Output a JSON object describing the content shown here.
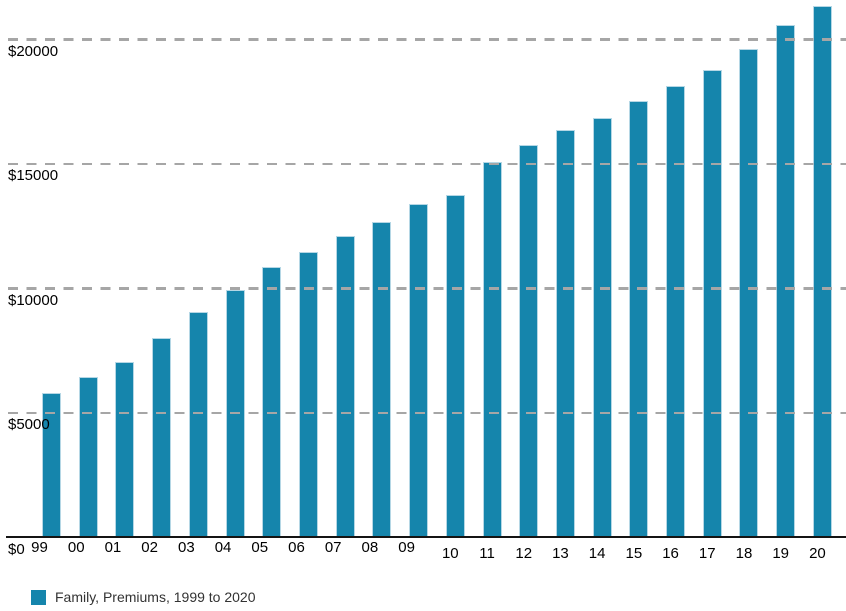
{
  "chart_data": {
    "type": "bar",
    "title": "",
    "xlabel": "",
    "ylabel": "",
    "categories": [
      "99",
      "00",
      "01",
      "02",
      "03",
      "04",
      "05",
      "06",
      "07",
      "08",
      "09",
      "10",
      "11",
      "12",
      "13",
      "14",
      "15",
      "16",
      "17",
      "18",
      "19",
      "20"
    ],
    "values": [
      5791,
      6438,
      7061,
      8003,
      9068,
      9950,
      10880,
      11480,
      12106,
      12680,
      13375,
      13770,
      15073,
      15745,
      16351,
      16834,
      17545,
      18142,
      18764,
      19616,
      20576,
      21342
    ],
    "series_name": "Family, Premiums, 1999 to 2020",
    "ylim": [
      0,
      21600
    ],
    "yticks": [
      {
        "value": 0,
        "label": "$0"
      },
      {
        "value": 5000,
        "label": "$5000"
      },
      {
        "value": 10000,
        "label": "$10000"
      },
      {
        "value": 15000,
        "label": "$15000"
      },
      {
        "value": 20000,
        "label": "$20000"
      }
    ],
    "grid": "horizontal-dashed",
    "legend_position": "bottom-left",
    "colors": {
      "bar_fill": "#1585ac",
      "bar_edge": "#b5d7e5",
      "gridline": "#a6a6a6",
      "axis_line": "#141414",
      "tick_text": "#000000",
      "legend_text": "#333333",
      "background": "#ffffff"
    }
  },
  "legend": {
    "label": "Family, Premiums, 1999 to 2020"
  }
}
